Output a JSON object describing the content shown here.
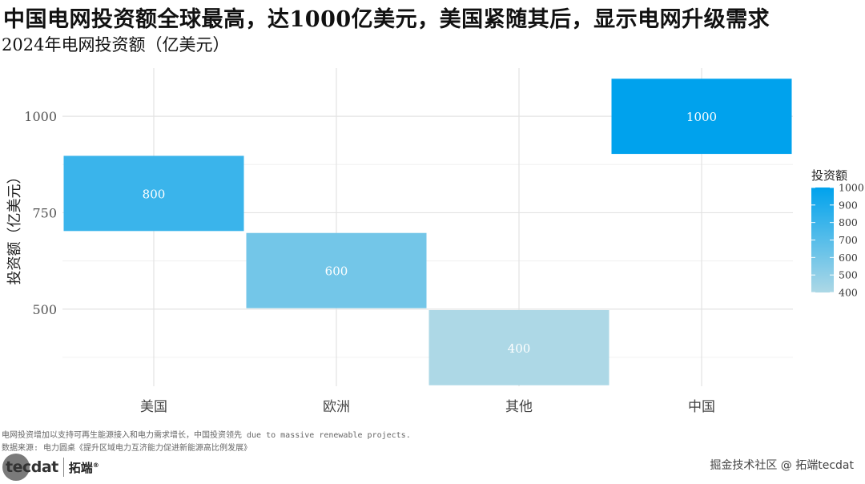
{
  "header": {
    "title": "中国电网投资额全球最高，达1000亿美元，美国紧随其后，显示电网升级需求",
    "subtitle": "2024年电网投资额（亿美元）"
  },
  "chart_data": {
    "type": "bar",
    "categories": [
      "美国",
      "欧洲",
      "其他",
      "中国"
    ],
    "values": [
      800,
      600,
      400,
      1000
    ],
    "bar_labels": [
      "800",
      "600",
      "400",
      "1000"
    ],
    "xlabel": "",
    "ylabel": "投资额（亿美元）",
    "ylim": [
      300,
      1125
    ],
    "yticks": [
      500,
      750,
      1000
    ],
    "ytick_labels": [
      "500",
      "750",
      "1000"
    ],
    "bar_height_units": 195,
    "grid": true,
    "legend": {
      "title": "投资额",
      "placement": "right",
      "ticks": [
        "1000",
        "900",
        "800",
        "700",
        "600",
        "500",
        "400"
      ],
      "color_low": "#add8e6",
      "color_high": "#00a2ed",
      "range": [
        400,
        1000
      ]
    }
  },
  "footer": {
    "caption_1": "电网投资增加以支持可再生能源接入和电力需求增长，中国投资领先 due to massive renewable projects.",
    "caption_2": "数据来源: 电力圆桌《提升区域电力互济能力促进新能源高比例发展》",
    "logo_text": "tecdat",
    "logo_cn": "拓端",
    "logo_mark": "®",
    "watermark": "掘金技术社区 @ 拓端tecdat"
  }
}
